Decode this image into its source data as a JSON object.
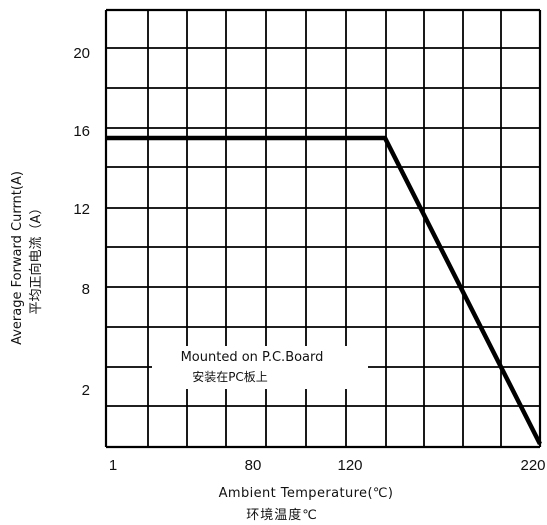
{
  "chart_data": {
    "type": "line",
    "title": "",
    "xlabel": "Ambient Temperature(℃)",
    "xlabel_cn": "环境温度℃",
    "ylabel": "Average Forward Currnt(A)",
    "ylabel_cn": "平均正向电流（A）",
    "xlim": [
      1,
      220
    ],
    "ylim": [
      0,
      22
    ],
    "grid": true,
    "x_tick_labels": [
      "1",
      "80",
      "120",
      "220"
    ],
    "y_tick_labels": [
      "20",
      "16",
      "12",
      "8",
      "2"
    ],
    "series": [
      {
        "points": [
          {
            "x": 1,
            "y": 15.5
          },
          {
            "x": 146,
            "y": 15.5
          },
          {
            "x": 220,
            "y": 0
          }
        ]
      }
    ],
    "annotation": {
      "line1": "Mounted on P.C.Board",
      "line2": "安装在PC板上"
    },
    "colors": {
      "grid": "#000000",
      "line": "#000000",
      "background": "#ffffff"
    }
  }
}
